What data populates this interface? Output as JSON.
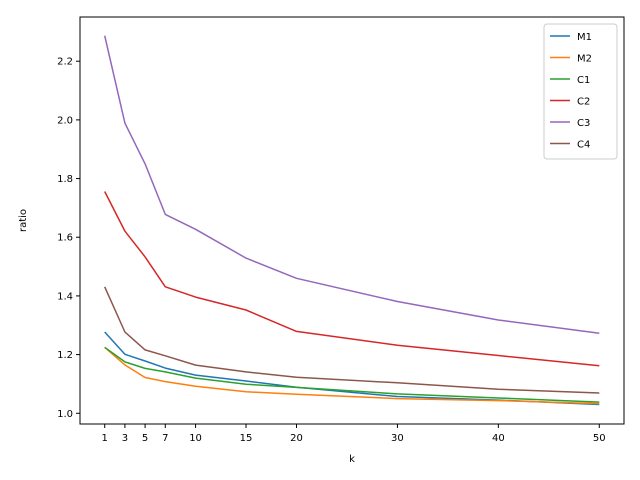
{
  "chart_data": {
    "type": "line",
    "title": "",
    "xlabel": "k",
    "ylabel": "ratio",
    "x": [
      1,
      3,
      5,
      7,
      10,
      15,
      20,
      30,
      40,
      50
    ],
    "xticks": [
      1,
      3,
      5,
      7,
      10,
      15,
      20,
      30,
      40,
      50
    ],
    "yticks": [
      1.0,
      1.2,
      1.4,
      1.6,
      1.8,
      2.0,
      2.2
    ],
    "xlim": [
      -1.45,
      52.45
    ],
    "ylim": [
      0.9634,
      2.3507
    ],
    "grid": false,
    "legend_position": "top-right",
    "series": [
      {
        "name": "M1",
        "color": "#1f77b4",
        "values": [
          1.277,
          1.201,
          1.178,
          1.154,
          1.13,
          1.11,
          1.089,
          1.057,
          1.045,
          1.03
        ]
      },
      {
        "name": "M2",
        "color": "#ff7f0e",
        "values": [
          1.225,
          1.165,
          1.122,
          1.108,
          1.092,
          1.073,
          1.065,
          1.05,
          1.043,
          1.033
        ]
      },
      {
        "name": "C1",
        "color": "#2ca02c",
        "values": [
          1.225,
          1.175,
          1.153,
          1.141,
          1.12,
          1.099,
          1.088,
          1.066,
          1.052,
          1.038
        ]
      },
      {
        "name": "C2",
        "color": "#d62728",
        "values": [
          1.756,
          1.621,
          1.533,
          1.431,
          1.396,
          1.352,
          1.279,
          1.232,
          1.197,
          1.162
        ]
      },
      {
        "name": "C3",
        "color": "#9467bd",
        "values": [
          2.287,
          1.989,
          1.85,
          1.678,
          1.627,
          1.529,
          1.46,
          1.381,
          1.318,
          1.273
        ]
      },
      {
        "name": "C4",
        "color": "#8c564b",
        "values": [
          1.431,
          1.277,
          1.216,
          1.196,
          1.164,
          1.141,
          1.123,
          1.104,
          1.082,
          1.069
        ]
      }
    ]
  }
}
